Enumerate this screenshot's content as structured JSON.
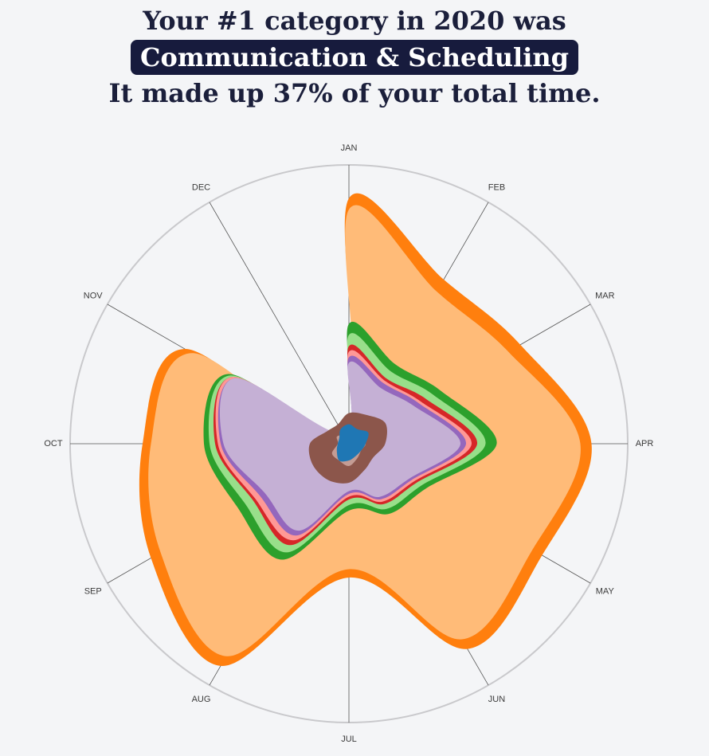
{
  "headline": {
    "line1": "Your #1 category in 2020 was",
    "category": "Communication & Scheduling",
    "line3": "It made up 37% of your total time."
  },
  "chart_data": {
    "type": "area",
    "layout": "polar",
    "categories": [
      "JAN",
      "FEB",
      "MAR",
      "APR",
      "MAY",
      "JUN",
      "JUL",
      "AUG",
      "SEP",
      "OCT",
      "NOV",
      "DEC"
    ],
    "rmax": 100,
    "grid": false,
    "series": [
      {
        "color": "#ff7f0e",
        "values": [
          88,
          68,
          71,
          87,
          80,
          85,
          48,
          92,
          82,
          74,
          68,
          3
        ]
      },
      {
        "color": "#ffbb78",
        "values": [
          84,
          63,
          66,
          83,
          76,
          81,
          45,
          88,
          78,
          71,
          65,
          3
        ]
      },
      {
        "color": "#2ca02c",
        "values": [
          43,
          33,
          38,
          53,
          32,
          29,
          24,
          48,
          46,
          52,
          50,
          4
        ]
      },
      {
        "color": "#98df8a",
        "values": [
          39,
          30,
          35,
          49,
          30,
          27,
          22,
          45,
          43,
          50,
          49,
          4
        ]
      },
      {
        "color": "#d62728",
        "values": [
          35,
          27,
          32,
          46,
          28,
          25,
          20,
          42,
          40,
          48,
          48,
          4
        ]
      },
      {
        "color": "#ff9896",
        "values": [
          33,
          26,
          30,
          44,
          27,
          24,
          19,
          40,
          39,
          47,
          48,
          4
        ]
      },
      {
        "color": "#9467bd",
        "values": [
          31,
          25,
          29,
          42,
          26,
          23,
          18,
          38,
          37,
          46,
          47,
          4
        ]
      },
      {
        "color": "#c5b0d5",
        "values": [
          29,
          23,
          27,
          40,
          25,
          22,
          17,
          36,
          35,
          45,
          47,
          4
        ]
      },
      {
        "color": "#8c564b",
        "values": [
          11,
          12,
          15,
          13,
          10,
          11,
          14,
          15,
          15,
          14,
          9,
          8
        ]
      },
      {
        "color": "#c49c94",
        "values": [
          6,
          5,
          4,
          6,
          5,
          6,
          8,
          7,
          7,
          4,
          5,
          4
        ]
      },
      {
        "color": "#1f77b4",
        "values": [
          7,
          6,
          8,
          6,
          5,
          5,
          6,
          7,
          5,
          4,
          4,
          6
        ]
      }
    ]
  }
}
